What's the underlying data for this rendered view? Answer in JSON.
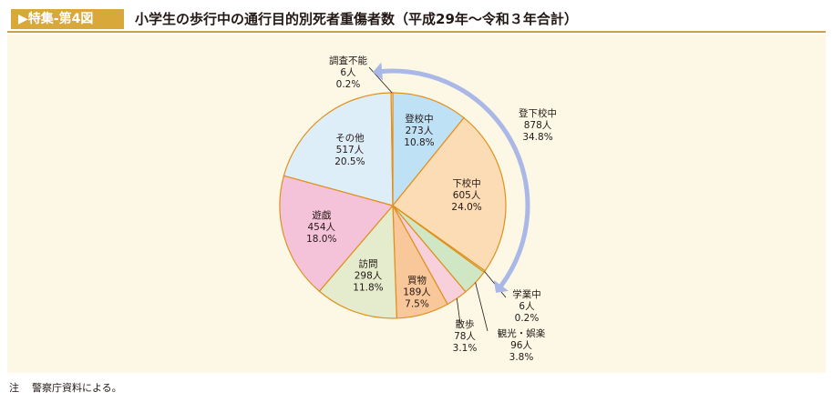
{
  "header": {
    "tag": "▶特集-第4図",
    "title": "小学生の歩行中の通行目的別死者重傷者数（平成29年～令和３年合計）"
  },
  "note": {
    "prefix": "注",
    "text": "警察庁資料による。"
  },
  "colors": {
    "tag_bg": "#d9a83a",
    "panel_bg": "#fdf8e6",
    "arrow": "#a9b8e6",
    "pie_stroke": "#e0901c"
  },
  "chart_data": {
    "type": "pie",
    "title": "小学生の歩行中の通行目的別死者重傷者数（平成29年～令和３年合計）",
    "unit": "人",
    "slices": [
      {
        "name": "登校中",
        "value": 273,
        "percent": "10.8%",
        "color": "#bfe1f5"
      },
      {
        "name": "下校中",
        "value": 605,
        "percent": "24.0%",
        "color": "#fbdcb4"
      },
      {
        "name": "学業中",
        "value": 6,
        "percent": "0.2%",
        "color": "#c8e3b0"
      },
      {
        "name": "観光・娯楽",
        "value": 96,
        "percent": "3.8%",
        "color": "#cfe7c4"
      },
      {
        "name": "散歩",
        "value": 78,
        "percent": "3.1%",
        "color": "#f8d0dc"
      },
      {
        "name": "買物",
        "value": 189,
        "percent": "7.5%",
        "color": "#f8c89a"
      },
      {
        "name": "訪問",
        "value": 298,
        "percent": "11.8%",
        "color": "#e4eccd"
      },
      {
        "name": "遊戯",
        "value": 454,
        "percent": "18.0%",
        "color": "#f5c3d9"
      },
      {
        "name": "その他",
        "value": 517,
        "percent": "20.5%",
        "color": "#deeef9"
      },
      {
        "name": "調査不能",
        "value": 6,
        "percent": "0.2%",
        "color": "#f2f2f2"
      }
    ],
    "group": {
      "name": "登下校中",
      "value": 878,
      "percent": "34.8%",
      "members": [
        "登校中",
        "下校中"
      ]
    }
  }
}
